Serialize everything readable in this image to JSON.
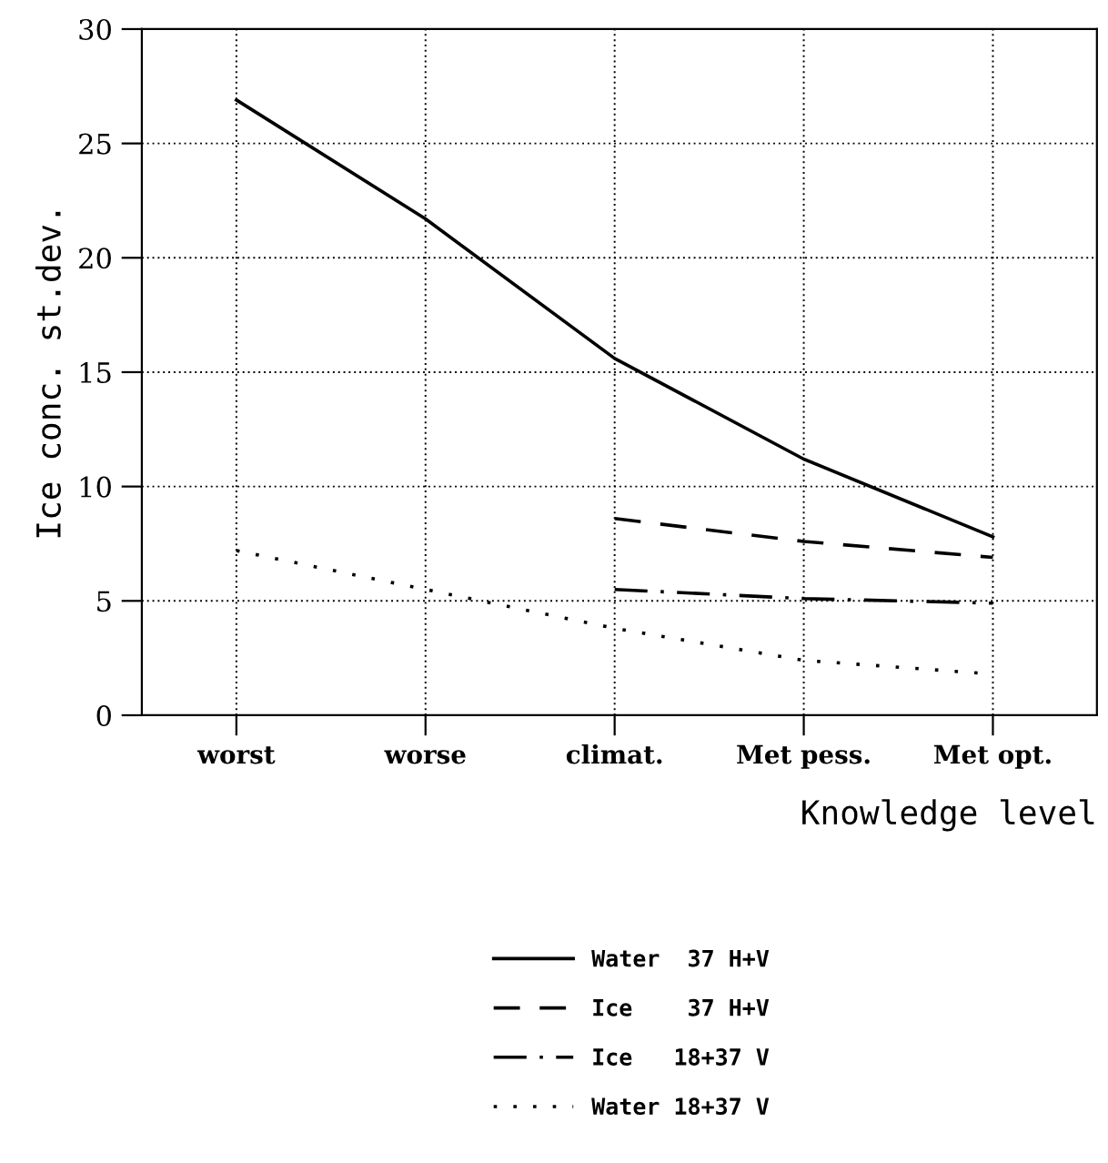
{
  "chart_data": {
    "type": "line",
    "xlabel": "Knowledge level",
    "ylabel": "Ice conc. st.dev.",
    "categories": [
      "worst",
      "worse",
      "climat.",
      "Met pess.",
      "Met opt."
    ],
    "series": [
      {
        "name": "Water  37 H+V",
        "color": "#000000",
        "line_style": "solid",
        "values": [
          26.9,
          21.7,
          15.6,
          11.2,
          7.8
        ]
      },
      {
        "name": "Ice    37 H+V",
        "color": "#000000",
        "line_style": "dashed",
        "values": [
          null,
          null,
          8.6,
          7.6,
          6.9
        ]
      },
      {
        "name": "Ice   18+37 V",
        "color": "#000000",
        "line_style": "dashdot",
        "values": [
          null,
          null,
          5.5,
          5.1,
          4.9
        ]
      },
      {
        "name": "Water 18+37 V",
        "color": "#000000",
        "line_style": "dotted",
        "values": [
          7.2,
          5.5,
          3.8,
          2.4,
          1.8
        ]
      }
    ],
    "ylim": [
      0,
      30
    ],
    "yticks": [
      0,
      5,
      10,
      15,
      20,
      25,
      30
    ],
    "grid": true,
    "legend": "bottom",
    "marker": "none"
  }
}
